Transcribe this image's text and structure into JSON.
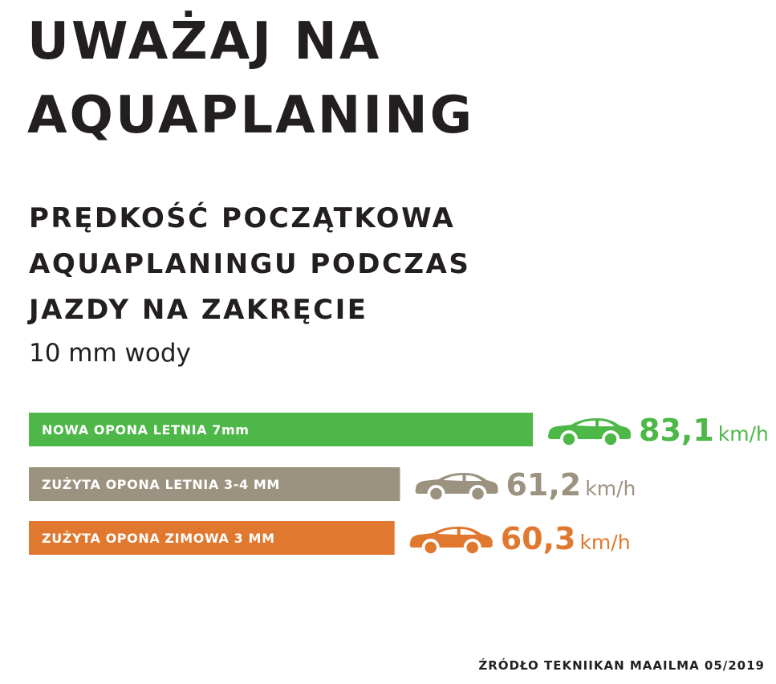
{
  "title_lines": [
    "UWAŻAJ NA",
    "AQUAPLANING"
  ],
  "subtitle_lines": [
    "PRĘDKOŚĆ POCZĄTKOWA",
    "AQUAPLANINGU PODCZAS",
    "JAZDY NA ZAKRĘCIE"
  ],
  "note": "10 mm wody",
  "source": "ŹRÓDŁO TEKNIIKAN MAAILMA 05/2019",
  "chart_data": {
    "type": "bar",
    "orientation": "horizontal",
    "unit": "km/h",
    "categories": [
      "NOWA OPONA LETNIA 7mm",
      "ZUŻYTA OPONA LETNIA 3-4 MM",
      "ZUŻYTA OPONA ZIMOWA 3 MM"
    ],
    "values": [
      83.1,
      61.2,
      60.3
    ],
    "value_labels": [
      "83,1",
      "61,2",
      "60,3"
    ],
    "colors": [
      "#4db848",
      "#9c9280",
      "#e0782f"
    ],
    "icons": [
      "car-icon",
      "car-icon",
      "car-icon"
    ]
  }
}
